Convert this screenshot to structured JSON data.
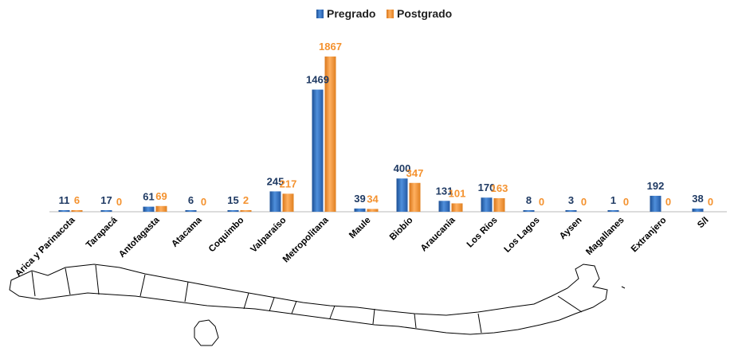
{
  "chart_data": {
    "type": "bar",
    "categories": [
      "Arica y Parinacota",
      "Tarapacá",
      "Antofagasta",
      "Atacama",
      "Coquimbo",
      "Valparaíso",
      "Metropolitana",
      "Maule",
      "Biobío",
      "Araucanía",
      "Los Ríos",
      "Los Lagos",
      "Aysen",
      "Magallanes",
      "Extranjero",
      "S/I"
    ],
    "series": [
      {
        "name": "Pregrado",
        "color": "#2e6fbf",
        "values": [
          11,
          17,
          61,
          6,
          15,
          245,
          1469,
          39,
          400,
          131,
          170,
          8,
          3,
          1,
          192,
          38
        ]
      },
      {
        "name": "Postgrado",
        "color": "#f4922f",
        "values": [
          6,
          0,
          69,
          0,
          2,
          217,
          1867,
          34,
          347,
          101,
          163,
          0,
          0,
          0,
          0,
          0
        ]
      }
    ],
    "value_label_colors": {
      "Pregrado": "#1f3a63",
      "Postgrado": "#f4922f"
    },
    "ylim": [
      0,
      1900
    ],
    "grid": false,
    "legend_position": "top-center",
    "title": "",
    "xlabel": "",
    "ylabel": ""
  },
  "decoration": {
    "map_icon": "chile-regions-map"
  }
}
